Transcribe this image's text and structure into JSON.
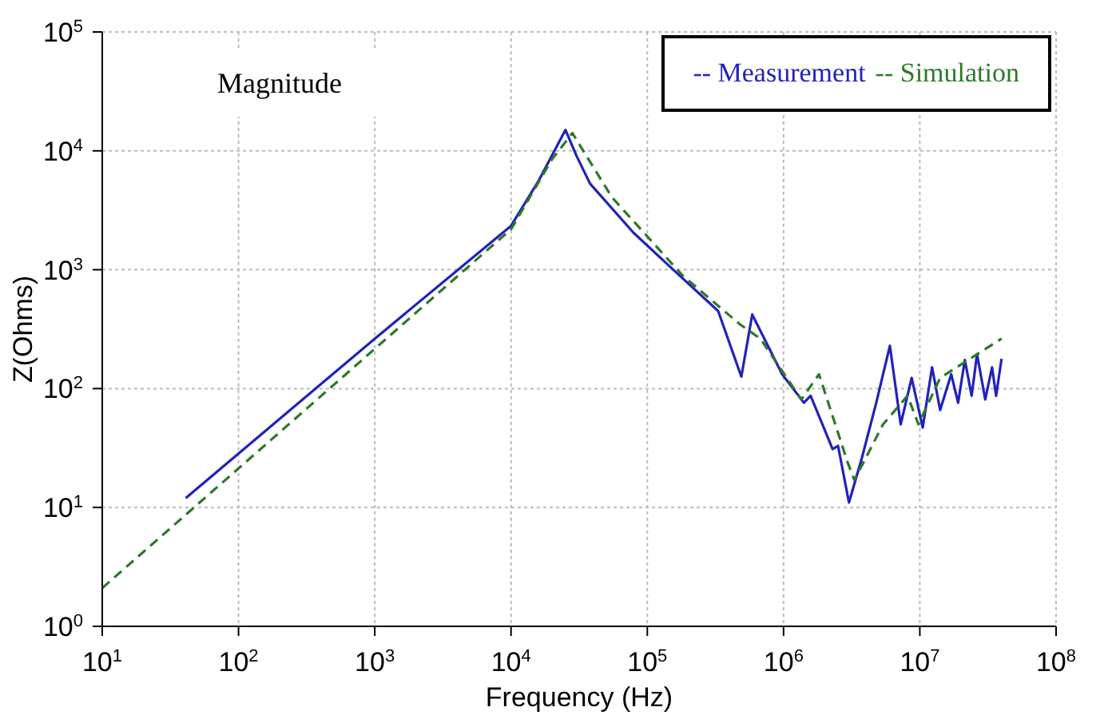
{
  "chart_data": {
    "type": "line",
    "xlabel": "Frequency (Hz)",
    "ylabel": "Z(Ohms)",
    "annotations": [
      "Magnitude"
    ],
    "log": "xy",
    "grid": true,
    "legend": "top right",
    "xlim": [
      10,
      100000000
    ],
    "ylim": [
      1,
      100000
    ],
    "xticks": [
      {
        "value": 10,
        "label": "10$^{1}$"
      },
      {
        "value": 100,
        "label": "10$^{2}$"
      },
      {
        "value": 1000,
        "label": "10$^{3}$"
      },
      {
        "value": 10000,
        "label": "10$^{4}$"
      },
      {
        "value": 100000,
        "label": "10$^{5}$"
      },
      {
        "value": 1000000,
        "label": "10$^{6}$"
      },
      {
        "value": 10000000,
        "label": "10$^{7}$"
      },
      {
        "value": 100000000,
        "label": "10$^{8}$"
      }
    ],
    "yticks": [
      {
        "value": 1,
        "label": "10$^{0}$"
      },
      {
        "value": 10,
        "label": "10$^{1}$"
      },
      {
        "value": 100,
        "label": "10$^{2}$"
      },
      {
        "value": 1000,
        "label": "10$^{3}$"
      },
      {
        "value": 10000,
        "label": "10$^{4}$"
      },
      {
        "value": 100000,
        "label": "10$^{5}$"
      }
    ],
    "series": [
      {
        "name": "-- Measurement",
        "color": "#2222bb",
        "line_style": "solid",
        "x": [
          41,
          1000,
          10000,
          15800,
          25100,
          30200,
          38000,
          79400,
          158000,
          331000,
          490000,
          589000,
          977000,
          1410000,
          1580000,
          2290000,
          2510000,
          3020000,
          3720000,
          4790000,
          6030000,
          7240000,
          8710000,
          10500000,
          12300000,
          14100000,
          17000000,
          19100000,
          21400000,
          24000000,
          26300000,
          30200000,
          33900000,
          36300000,
          39800000
        ],
        "values": [
          12,
          263,
          2340,
          5500,
          15000,
          9100,
          5300,
          2040,
          980,
          450,
          126,
          420,
          132,
          76,
          87,
          31,
          33,
          11,
          25,
          76,
          229,
          50,
          123,
          47,
          151,
          66,
          132,
          76,
          174,
          87,
          195,
          81,
          151,
          87,
          178
        ]
      },
      {
        "name": "-- Simulation",
        "color": "#2a7a2a",
        "line_style": "dashed",
        "x": [
          10,
          10000,
          20000,
          28200,
          55000,
          182000,
          479000,
          676000,
          1350000,
          1820000,
          2950000,
          3310000,
          5370000,
          8130000,
          9770000,
          14100000,
          39800000
        ],
        "values": [
          2.1,
          2190,
          8500,
          14100,
          4070,
          891,
          347,
          263,
          81,
          132,
          24,
          17,
          50,
          87,
          50,
          123,
          263
        ]
      }
    ]
  }
}
